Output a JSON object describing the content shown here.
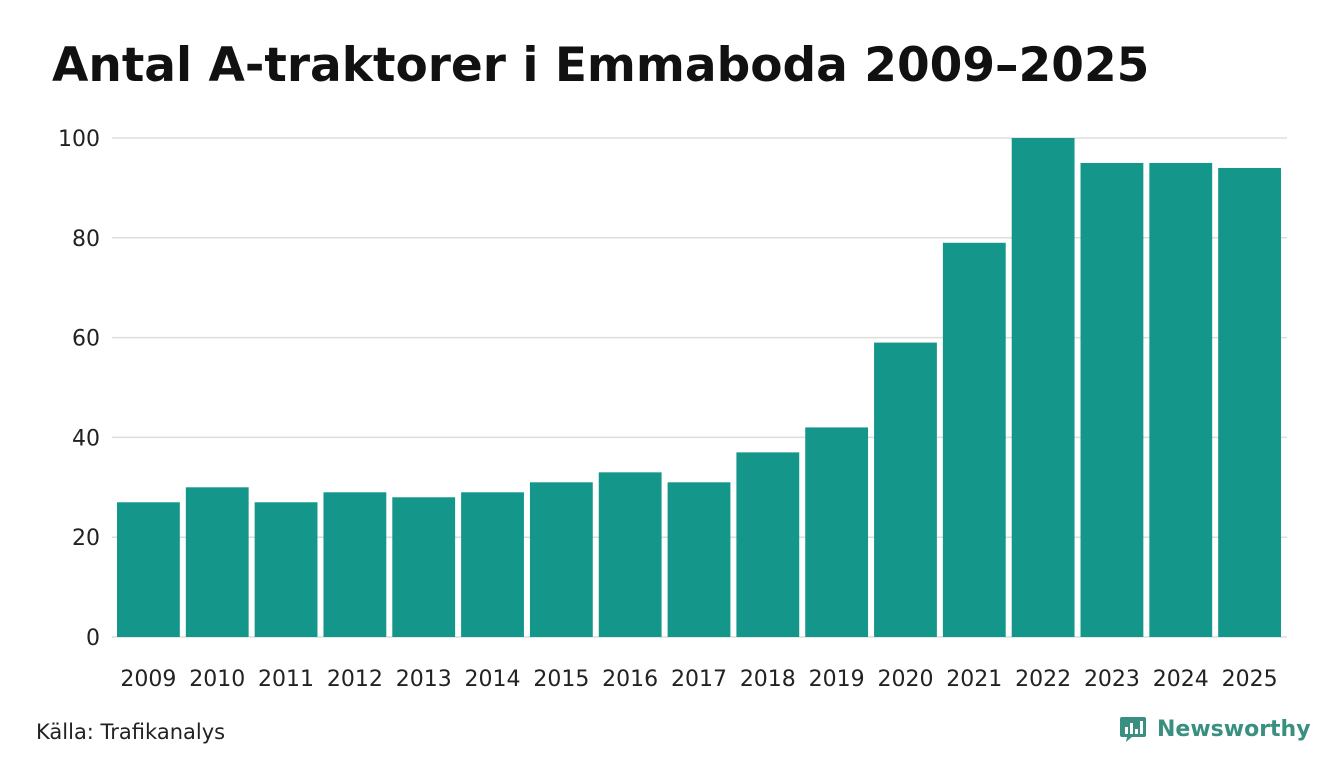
{
  "chart_data": {
    "type": "bar",
    "title": "Antal A-traktorer i Emmaboda 2009–2025",
    "xlabel": "",
    "ylabel": "",
    "categories": [
      "2009",
      "2010",
      "2011",
      "2012",
      "2013",
      "2014",
      "2015",
      "2016",
      "2017",
      "2018",
      "2019",
      "2020",
      "2021",
      "2022",
      "2023",
      "2024",
      "2025"
    ],
    "values": [
      27,
      30,
      27,
      29,
      28,
      29,
      31,
      33,
      31,
      37,
      42,
      59,
      79,
      100,
      95,
      95,
      94
    ],
    "ylim": [
      0,
      100
    ],
    "yticks": [
      "0",
      "20",
      "40",
      "60",
      "80",
      "100"
    ],
    "grid": true,
    "bar_color": "#14968a",
    "grid_color": "#dddddd"
  },
  "footer": {
    "source": "Källa: Trafikanalys",
    "brand": "Newsworthy",
    "brand_color": "#3a9080",
    "brand_icon": "bar-chart-speech-icon"
  }
}
